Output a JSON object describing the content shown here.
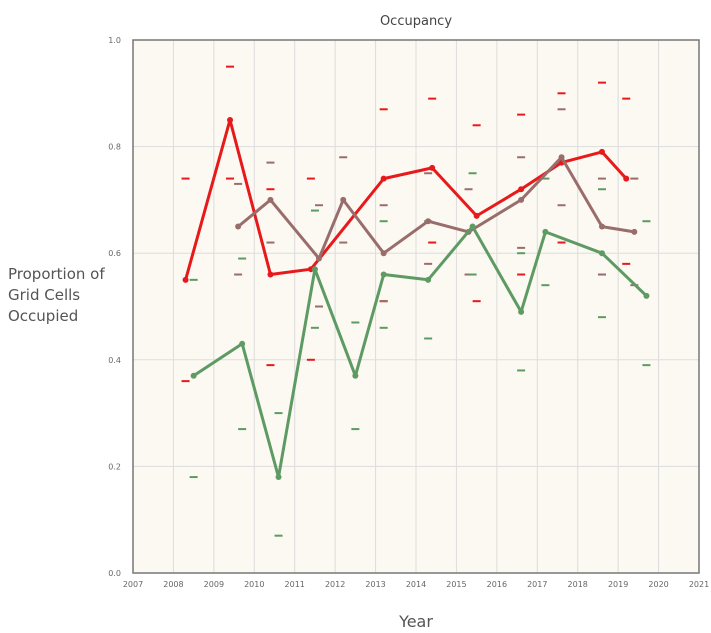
{
  "colors": {
    "background": "#fbf9f1",
    "grid": "#dddddd",
    "red": "#e8191b",
    "brown": "#9a6d6d",
    "green": "#5e9a63"
  },
  "chart_data": {
    "type": "line",
    "title": "Occupancy",
    "xlabel": "Year",
    "ylabel": "Proportion of Grid Cells Occupied",
    "xlim": [
      2007,
      2021
    ],
    "ylim": [
      0.0,
      1.0
    ],
    "x_ticks": [
      "2007",
      "2008",
      "2009",
      "2010",
      "2011",
      "2012",
      "2013",
      "2014",
      "2015",
      "2016",
      "2017",
      "2018",
      "2019",
      "2020",
      "2021"
    ],
    "y_ticks": [
      "0.0",
      "0.2",
      "0.4",
      "0.6",
      "0.8",
      "1.0"
    ],
    "grid": true,
    "legend": "none",
    "series": [
      {
        "color": "#e8191b",
        "x": [
          2008.3,
          2009.4,
          2010.4,
          2011.4,
          2013.2,
          2014.4,
          2015.5,
          2016.6,
          2017.6,
          2018.6,
          2019.2
        ],
        "y": [
          0.55,
          0.85,
          0.56,
          0.57,
          0.74,
          0.76,
          0.67,
          0.72,
          0.77,
          0.79,
          0.74
        ],
        "lower": [
          0.36,
          0.74,
          0.39,
          0.4,
          0.51,
          0.62,
          0.51,
          0.56,
          0.62,
          0.56,
          0.58
        ],
        "upper": [
          0.74,
          0.95,
          0.72,
          0.74,
          0.87,
          0.89,
          0.84,
          0.86,
          0.9,
          0.92,
          0.89
        ]
      },
      {
        "color": "#9a6d6d",
        "x": [
          2009.6,
          2010.4,
          2011.6,
          2012.2,
          2013.2,
          2014.3,
          2015.3,
          2016.6,
          2017.6,
          2018.6,
          2019.4
        ],
        "y": [
          0.65,
          0.7,
          0.59,
          0.7,
          0.6,
          0.66,
          0.64,
          0.7,
          0.78,
          0.65,
          0.64
        ],
        "lower": [
          0.56,
          0.62,
          0.5,
          0.62,
          0.51,
          0.58,
          0.56,
          0.61,
          0.69,
          0.56,
          0.54
        ],
        "upper": [
          0.73,
          0.77,
          0.69,
          0.78,
          0.69,
          0.75,
          0.72,
          0.78,
          0.87,
          0.74,
          0.74
        ]
      },
      {
        "color": "#5e9a63",
        "x": [
          2008.5,
          2009.7,
          2010.6,
          2011.5,
          2012.5,
          2013.2,
          2014.3,
          2015.4,
          2016.6,
          2017.2,
          2018.6,
          2019.7
        ],
        "y": [
          0.37,
          0.43,
          0.18,
          0.57,
          0.37,
          0.56,
          0.55,
          0.65,
          0.49,
          0.64,
          0.6,
          0.52
        ],
        "lower": [
          0.18,
          0.27,
          0.07,
          0.46,
          0.27,
          0.46,
          0.44,
          0.56,
          0.38,
          0.54,
          0.48,
          0.39
        ],
        "upper": [
          0.55,
          0.59,
          0.3,
          0.68,
          0.47,
          0.66,
          0.66,
          0.75,
          0.6,
          0.74,
          0.72,
          0.66
        ]
      }
    ]
  }
}
